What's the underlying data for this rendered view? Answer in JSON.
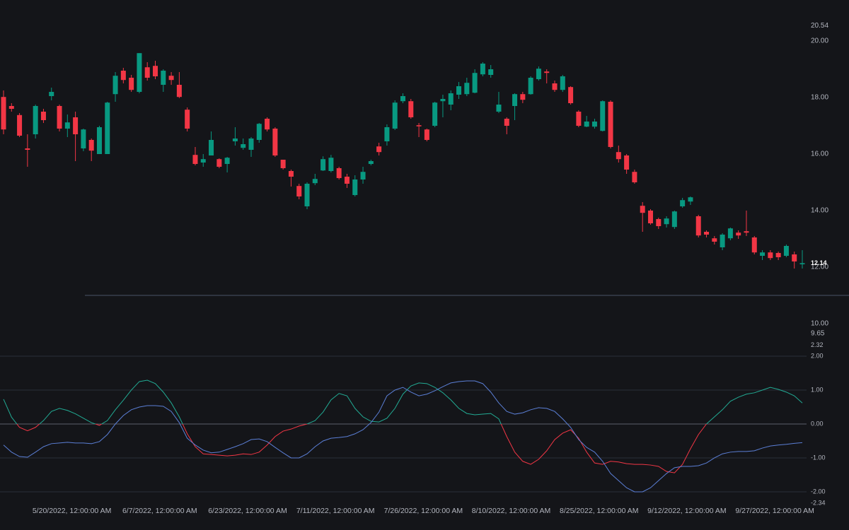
{
  "chart_data": [
    {
      "type": "candlestick",
      "categories": [
        null,
        null,
        null,
        null,
        null,
        null,
        null,
        null,
        null,
        "5/20/2022, 12:00:00 AM",
        null,
        null,
        null,
        null,
        null,
        null,
        null,
        null,
        null,
        null,
        "6/7/2022, 12:00:00 AM",
        null,
        null,
        null,
        null,
        null,
        null,
        null,
        null,
        null,
        null,
        "6/23/2022, 12:00:00 AM",
        null,
        null,
        null,
        null,
        null,
        null,
        null,
        null,
        null,
        null,
        "7/11/2022, 12:00:00 AM",
        null,
        null,
        null,
        null,
        null,
        null,
        null,
        null,
        null,
        null,
        "7/26/2022, 12:00:00 AM",
        null,
        null,
        null,
        null,
        null,
        null,
        null,
        null,
        null,
        null,
        "8/10/2022, 12:00:00 AM",
        null,
        null,
        null,
        null,
        null,
        null,
        null,
        null,
        null,
        null,
        "8/25/2022, 12:00:00 AM",
        null,
        null,
        null,
        null,
        null,
        null,
        null,
        null,
        null,
        null,
        "9/12/2022, 12:00:00 AM",
        null,
        null,
        null,
        null,
        null,
        null,
        null,
        null,
        null,
        null,
        "9/27/2022, 12:00:00 AM",
        null,
        null,
        null
      ],
      "open": [
        18.02,
        17.7,
        17.38,
        16.2,
        16.7,
        17.5,
        18.05,
        17.7,
        16.9,
        17.3,
        16.2,
        16.5,
        16.0,
        16.0,
        18.12,
        18.95,
        18.7,
        18.2,
        19.07,
        19.12,
        18.45,
        18.77,
        18.45,
        17.57,
        15.97,
        15.7,
        15.95,
        15.82,
        15.65,
        16.45,
        16.22,
        16.15,
        16.5,
        17.25,
        16.9,
        15.8,
        15.4,
        14.87,
        14.15,
        14.97,
        15.42,
        15.4,
        15.5,
        15.2,
        14.55,
        15.1,
        15.65,
        16.27,
        16.45,
        16.9,
        17.87,
        17.87,
        17.02,
        16.87,
        17.0,
        17.87,
        17.75,
        18.1,
        18.12,
        18.17,
        18.82,
        18.8,
        17.5,
        17.25,
        17.7,
        18.12,
        18.12,
        18.65,
        18.92,
        18.5,
        18.27,
        18.37,
        17.5,
        16.97,
        16.97,
        16.82,
        17.85,
        16.07,
        15.95,
        15.37,
        14.17,
        14.0,
        13.7,
        13.52,
        13.42,
        14.15,
        14.32,
        13.8,
        13.25,
        13.02,
        12.7,
        13.02,
        13.22,
        13.27,
        13.05,
        12.4,
        12.52,
        12.5,
        12.4,
        12.45,
        12.1
      ],
      "high": [
        18.25,
        17.8,
        17.45,
        16.7,
        17.75,
        17.6,
        18.35,
        17.75,
        17.4,
        17.5,
        16.9,
        16.55,
        17.0,
        17.85,
        18.9,
        19.05,
        18.8,
        19.57,
        19.25,
        19.3,
        19.0,
        18.9,
        18.9,
        17.65,
        16.25,
        16.0,
        16.8,
        15.85,
        15.9,
        16.95,
        16.55,
        16.6,
        17.1,
        17.3,
        16.95,
        15.8,
        15.45,
        14.95,
        15.0,
        15.3,
        15.92,
        15.97,
        15.55,
        15.3,
        15.25,
        15.55,
        15.8,
        16.4,
        17.05,
        17.9,
        18.15,
        17.95,
        17.1,
        16.9,
        17.85,
        18.1,
        18.25,
        18.55,
        18.7,
        19.0,
        19.25,
        19.15,
        18.2,
        17.3,
        18.15,
        18.2,
        18.75,
        19.1,
        19.0,
        18.6,
        18.8,
        18.4,
        17.55,
        17.35,
        17.25,
        17.9,
        17.9,
        16.3,
        16.0,
        15.45,
        14.3,
        14.05,
        13.75,
        13.8,
        14.0,
        14.45,
        14.5,
        13.85,
        13.3,
        13.1,
        13.2,
        13.4,
        13.3,
        14.0,
        13.1,
        12.6,
        12.6,
        12.55,
        12.8,
        12.55,
        12.6
      ],
      "low": [
        16.7,
        17.5,
        16.6,
        15.55,
        16.55,
        17.1,
        17.9,
        16.8,
        16.6,
        15.75,
        16.1,
        15.75,
        16.0,
        16.0,
        17.85,
        18.5,
        18.2,
        18.15,
        18.6,
        18.65,
        18.2,
        18.45,
        17.98,
        16.8,
        15.6,
        15.55,
        15.95,
        15.5,
        15.35,
        16.3,
        16.15,
        15.9,
        16.4,
        16.8,
        15.9,
        15.45,
        14.85,
        14.4,
        14.05,
        14.9,
        15.4,
        15.35,
        15.1,
        14.8,
        14.5,
        14.95,
        15.6,
        15.95,
        16.3,
        16.85,
        17.8,
        17.25,
        16.6,
        16.45,
        16.95,
        17.3,
        17.55,
        17.95,
        18.05,
        18.15,
        18.75,
        18.7,
        17.45,
        16.7,
        17.2,
        17.8,
        18.1,
        18.6,
        18.5,
        18.2,
        18.2,
        17.75,
        16.95,
        16.95,
        16.9,
        16.8,
        16.2,
        15.7,
        15.3,
        14.95,
        13.25,
        13.5,
        13.35,
        13.4,
        13.35,
        14.1,
        14.2,
        13.05,
        13.05,
        12.8,
        12.6,
        12.95,
        13.0,
        13.1,
        12.45,
        12.25,
        12.25,
        12.25,
        12.35,
        11.95,
        11.95
      ],
      "close": [
        16.87,
        17.6,
        16.65,
        16.15,
        17.7,
        17.2,
        18.2,
        16.9,
        17.12,
        16.7,
        16.87,
        16.12,
        16.95,
        17.82,
        18.77,
        18.62,
        18.27,
        19.57,
        18.7,
        18.75,
        18.95,
        18.62,
        18.02,
        16.9,
        15.65,
        15.82,
        16.5,
        15.55,
        15.87,
        16.55,
        16.35,
        16.55,
        17.07,
        16.87,
        15.95,
        15.5,
        15.2,
        14.5,
        14.95,
        15.12,
        15.82,
        15.87,
        15.15,
        14.95,
        15.1,
        15.37,
        15.75,
        16.07,
        16.95,
        17.82,
        18.05,
        17.3,
        16.98,
        16.5,
        17.82,
        17.95,
        18.15,
        18.4,
        18.52,
        18.87,
        19.2,
        19.0,
        17.75,
        17.0,
        18.12,
        17.92,
        18.7,
        19.02,
        18.87,
        18.27,
        18.75,
        17.8,
        17.0,
        17.15,
        17.15,
        17.87,
        16.25,
        15.82,
        15.45,
        15.0,
        13.92,
        13.55,
        13.45,
        13.72,
        13.97,
        14.37,
        14.47,
        13.12,
        13.15,
        12.9,
        13.15,
        13.37,
        13.12,
        13.22,
        12.52,
        12.52,
        12.32,
        12.35,
        12.75,
        12.2,
        12.14
      ],
      "up_color": "#089981",
      "down_color": "#f23645",
      "ylim": [
        9.65,
        20.54
      ],
      "yticks": [
        {
          "value": 10,
          "label": "10.00"
        },
        {
          "value": 12,
          "label": "12.00"
        },
        {
          "value": 14,
          "label": "14.00"
        },
        {
          "value": 16,
          "label": "16.00"
        },
        {
          "value": 18,
          "label": "18.00"
        },
        {
          "value": 20,
          "label": "20.00"
        }
      ],
      "price_line": 11,
      "price_line_color": "#4a5468"
    },
    {
      "type": "line",
      "series": [
        {
          "color_positive": "#22ab94",
          "color_negative": "#f23645",
          "values": [
            0.73,
            0.2,
            -0.1,
            -0.2,
            -0.1,
            0.1,
            0.37,
            0.46,
            0.4,
            0.3,
            0.17,
            0.04,
            -0.04,
            0.1,
            0.42,
            0.7,
            1.0,
            1.25,
            1.29,
            1.19,
            0.94,
            0.62,
            0.21,
            -0.29,
            -0.67,
            -0.88,
            -0.9,
            -0.92,
            -0.94,
            -0.92,
            -0.88,
            -0.9,
            -0.83,
            -0.62,
            -0.37,
            -0.21,
            -0.15,
            -0.06,
            0,
            0.1,
            0.35,
            0.71,
            0.9,
            0.83,
            0.46,
            0.21,
            0.08,
            0.06,
            0.17,
            0.46,
            0.88,
            1.12,
            1.21,
            1.19,
            1.08,
            0.92,
            0.71,
            0.46,
            0.31,
            0.27,
            0.29,
            0.31,
            0.15,
            -0.37,
            -0.83,
            -1.1,
            -1.19,
            -1.04,
            -0.79,
            -0.46,
            -0.27,
            -0.17,
            -0.42,
            -0.83,
            -1.15,
            -1.19,
            -1.1,
            -1.12,
            -1.17,
            -1.19,
            -1.19,
            -1.21,
            -1.25,
            -1.4,
            -1.44,
            -1.19,
            -0.73,
            -0.31,
            0,
            0.21,
            0.42,
            0.67,
            0.79,
            0.88,
            0.92,
            1.0,
            1.08,
            1.02,
            0.94,
            0.83,
            0.62
          ]
        },
        {
          "color": "#5b7fd6",
          "values": [
            -0.62,
            -0.83,
            -0.96,
            -0.98,
            -0.83,
            -0.67,
            -0.58,
            -0.56,
            -0.54,
            -0.56,
            -0.56,
            -0.58,
            -0.52,
            -0.31,
            0,
            0.25,
            0.42,
            0.5,
            0.54,
            0.54,
            0.52,
            0.37,
            0.04,
            -0.42,
            -0.62,
            -0.77,
            -0.85,
            -0.83,
            -0.75,
            -0.67,
            -0.58,
            -0.46,
            -0.44,
            -0.52,
            -0.69,
            -0.85,
            -1.0,
            -1.0,
            -0.88,
            -0.67,
            -0.5,
            -0.42,
            -0.4,
            -0.37,
            -0.29,
            -0.17,
            0.04,
            0.35,
            0.83,
            1.0,
            1.08,
            0.94,
            0.83,
            0.88,
            0.98,
            1.1,
            1.21,
            1.25,
            1.27,
            1.27,
            1.19,
            0.94,
            0.62,
            0.37,
            0.29,
            0.33,
            0.42,
            0.48,
            0.46,
            0.37,
            0.15,
            -0.1,
            -0.46,
            -0.69,
            -0.83,
            -1.1,
            -1.46,
            -1.67,
            -1.88,
            -2.0,
            -2.0,
            -1.88,
            -1.67,
            -1.46,
            -1.29,
            -1.25,
            -1.25,
            -1.23,
            -1.15,
            -1.0,
            -0.88,
            -0.83,
            -0.81,
            -0.81,
            -0.79,
            -0.71,
            -0.65,
            -0.62,
            -0.6,
            -0.57,
            -0.55
          ]
        }
      ],
      "ylim": [
        -2.34,
        2.32
      ],
      "yticks": [
        {
          "value": -2,
          "label": "-2.00"
        },
        {
          "value": -1,
          "label": "-1.00"
        },
        {
          "value": 0,
          "label": "0.00"
        },
        {
          "value": 1,
          "label": "1.00"
        },
        {
          "value": 2,
          "label": "2.00"
        }
      ],
      "grid": true
    }
  ]
}
